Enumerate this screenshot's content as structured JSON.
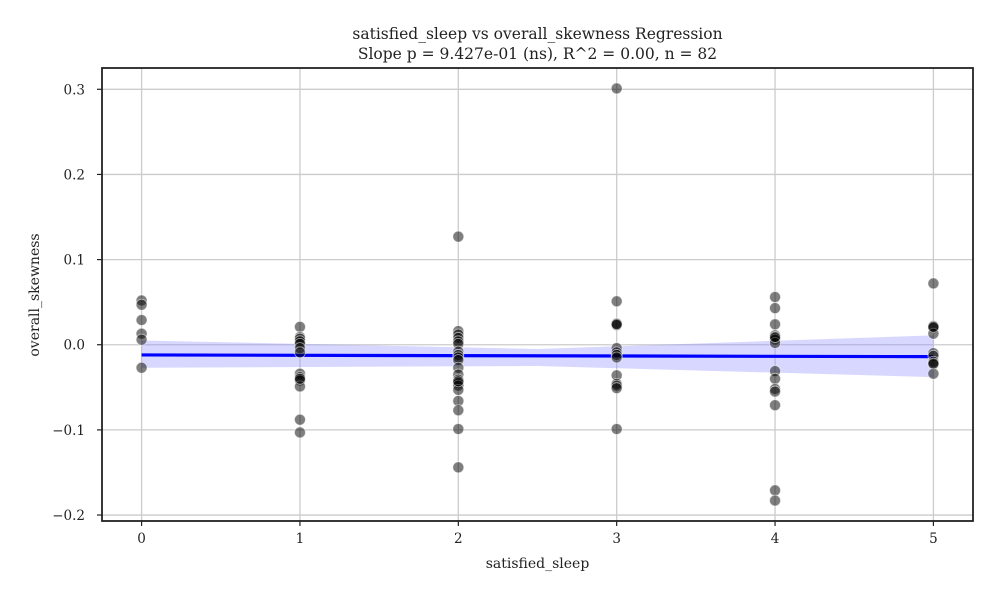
{
  "chart_data": {
    "type": "scatter",
    "title": "satisfied_sleep vs overall_skewness Regression",
    "subtitle": "Slope p = 9.427e-01 (ns), R^2 = 0.00, n = 82",
    "xlabel": "satisfied_sleep",
    "ylabel": "overall_skewness",
    "xlim": [
      -0.25,
      5.25
    ],
    "ylim": [
      -0.207,
      0.325
    ],
    "xticks": [
      0,
      1,
      2,
      3,
      4,
      5
    ],
    "xtick_labels": [
      "0",
      "1",
      "2",
      "3",
      "4",
      "5"
    ],
    "yticks": [
      -0.2,
      -0.1,
      0.0,
      0.1,
      0.2,
      0.3
    ],
    "ytick_labels": [
      "−0.2",
      "−0.1",
      "0.0",
      "0.1",
      "0.2",
      "0.3"
    ],
    "grid": true,
    "points": [
      {
        "x": 0,
        "y": 0.052
      },
      {
        "x": 0,
        "y": 0.047
      },
      {
        "x": 0,
        "y": 0.029
      },
      {
        "x": 0,
        "y": 0.013
      },
      {
        "x": 0,
        "y": 0.006
      },
      {
        "x": 0,
        "y": -0.027
      },
      {
        "x": 1,
        "y": 0.021
      },
      {
        "x": 1,
        "y": 0.009
      },
      {
        "x": 1,
        "y": 0.007
      },
      {
        "x": 1,
        "y": 0.004
      },
      {
        "x": 1,
        "y": 0.001
      },
      {
        "x": 1,
        "y": -0.004
      },
      {
        "x": 1,
        "y": -0.009
      },
      {
        "x": 1,
        "y": -0.034
      },
      {
        "x": 1,
        "y": -0.038
      },
      {
        "x": 1,
        "y": -0.042
      },
      {
        "x": 1,
        "y": -0.049
      },
      {
        "x": 1,
        "y": -0.088
      },
      {
        "x": 1,
        "y": -0.103
      },
      {
        "x": 2,
        "y": 0.127
      },
      {
        "x": 2,
        "y": 0.016
      },
      {
        "x": 2,
        "y": 0.012
      },
      {
        "x": 2,
        "y": 0.008
      },
      {
        "x": 2,
        "y": 0.004
      },
      {
        "x": 2,
        "y": 0.001
      },
      {
        "x": 2,
        "y": -0.008
      },
      {
        "x": 2,
        "y": -0.012
      },
      {
        "x": 2,
        "y": -0.015
      },
      {
        "x": 2,
        "y": -0.018
      },
      {
        "x": 2,
        "y": -0.027
      },
      {
        "x": 2,
        "y": -0.035
      },
      {
        "x": 2,
        "y": -0.041
      },
      {
        "x": 2,
        "y": -0.045
      },
      {
        "x": 2,
        "y": -0.048
      },
      {
        "x": 2,
        "y": -0.053
      },
      {
        "x": 2,
        "y": -0.066
      },
      {
        "x": 2,
        "y": -0.077
      },
      {
        "x": 2,
        "y": -0.099
      },
      {
        "x": 2,
        "y": -0.144
      },
      {
        "x": 3,
        "y": 0.301
      },
      {
        "x": 3,
        "y": 0.051
      },
      {
        "x": 3,
        "y": 0.025
      },
      {
        "x": 3,
        "y": 0.023
      },
      {
        "x": 3,
        "y": -0.004
      },
      {
        "x": 3,
        "y": -0.009
      },
      {
        "x": 3,
        "y": -0.012
      },
      {
        "x": 3,
        "y": -0.015
      },
      {
        "x": 3,
        "y": -0.036
      },
      {
        "x": 3,
        "y": -0.046
      },
      {
        "x": 3,
        "y": -0.048
      },
      {
        "x": 3,
        "y": -0.051
      },
      {
        "x": 3,
        "y": -0.099
      },
      {
        "x": 4,
        "y": 0.056
      },
      {
        "x": 4,
        "y": 0.043
      },
      {
        "x": 4,
        "y": 0.024
      },
      {
        "x": 4,
        "y": 0.011
      },
      {
        "x": 4,
        "y": 0.008
      },
      {
        "x": 4,
        "y": 0.006
      },
      {
        "x": 4,
        "y": 0.002
      },
      {
        "x": 4,
        "y": -0.031
      },
      {
        "x": 4,
        "y": -0.04
      },
      {
        "x": 4,
        "y": -0.052
      },
      {
        "x": 4,
        "y": -0.055
      },
      {
        "x": 4,
        "y": -0.071
      },
      {
        "x": 4,
        "y": -0.171
      },
      {
        "x": 4,
        "y": -0.183
      },
      {
        "x": 5,
        "y": 0.072
      },
      {
        "x": 5,
        "y": 0.022
      },
      {
        "x": 5,
        "y": 0.02
      },
      {
        "x": 5,
        "y": 0.013
      },
      {
        "x": 5,
        "y": -0.01
      },
      {
        "x": 5,
        "y": -0.013
      },
      {
        "x": 5,
        "y": -0.02
      },
      {
        "x": 5,
        "y": -0.023
      },
      {
        "x": 5,
        "y": -0.034
      },
      {
        "x": 5,
        "y": -0.022
      },
      {
        "x": 5,
        "y": 0.021
      },
      {
        "x": 1,
        "y": -0.04
      },
      {
        "x": 2,
        "y": -0.043
      },
      {
        "x": 4,
        "y": 0.009
      },
      {
        "x": 3,
        "y": 0.024
      }
    ],
    "regression": {
      "x": [
        0,
        5
      ],
      "y": [
        -0.012,
        -0.014
      ],
      "ci_lower": [
        -0.027,
        -0.038
      ],
      "ci_upper": [
        0.005,
        0.011
      ],
      "ci_mid_x": 2.5,
      "ci_mid_lower": [
        -0.025,
        -0.005
      ]
    },
    "colors": {
      "points": "#000000",
      "line": "#0000ff",
      "band": "#8c8cff",
      "grid": "#cccccc",
      "axes": "#222222"
    }
  }
}
